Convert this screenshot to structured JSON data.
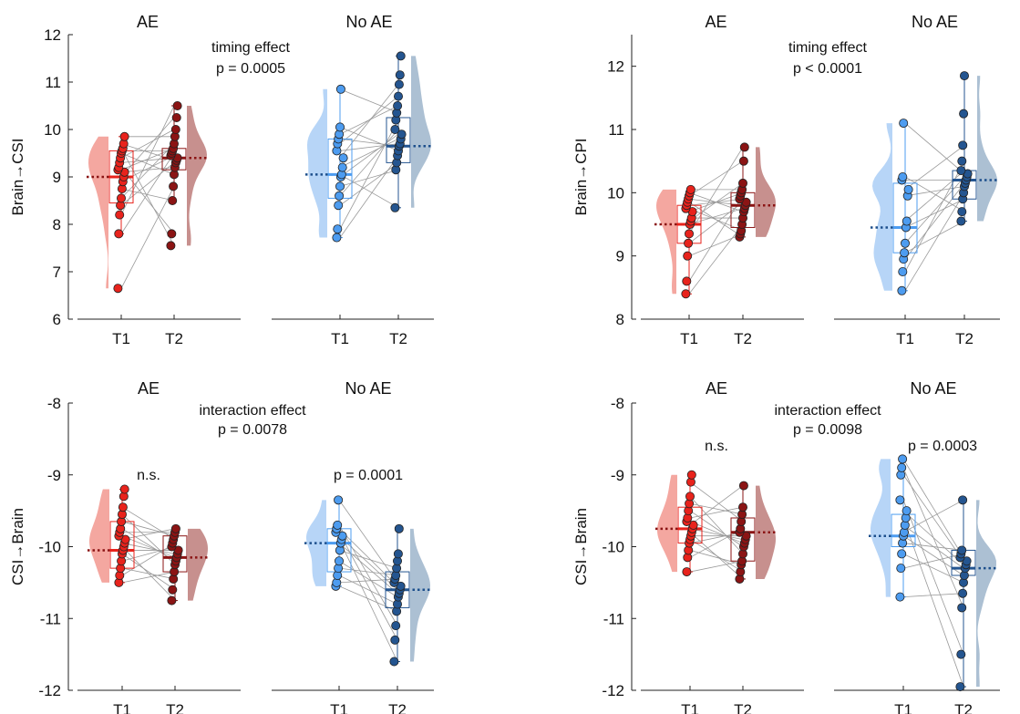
{
  "colors": {
    "ae_t1": "#e8231c",
    "ae_t2": "#8b1414",
    "ae_t1_violin": "#f3a29b",
    "ae_t2_violin": "#c48a88",
    "noae_t1": "#4d9cf0",
    "noae_t2": "#245590",
    "noae_t1_violin": "#b3d3f7",
    "noae_t2_violin": "#a8bdd1",
    "line": "#999999"
  },
  "chart_data": [
    {
      "type": "scatter",
      "ylabel": "Brain→CSI",
      "ylim": [
        6,
        12
      ],
      "yticks": [
        6,
        7,
        8,
        9,
        10,
        11,
        12
      ],
      "effect": {
        "label": "timing effect",
        "p": "p = 0.0005"
      },
      "groups": [
        {
          "title": "AE",
          "xticks": [
            "T1",
            "T2"
          ],
          "stat": "",
          "t1": [
            6.65,
            7.8,
            8.2,
            8.4,
            8.55,
            8.75,
            8.9,
            9.0,
            9.1,
            9.15,
            9.2,
            9.3,
            9.4,
            9.5,
            9.55,
            9.6,
            9.7,
            9.85
          ],
          "t2": [
            7.55,
            7.8,
            8.5,
            8.8,
            9.05,
            9.2,
            9.3,
            9.35,
            9.4,
            9.45,
            9.5,
            9.55,
            9.6,
            9.7,
            9.85,
            10.0,
            10.25,
            10.5
          ],
          "t1_box": {
            "q1": 8.45,
            "median": 9.0,
            "q3": 9.55,
            "min": 7.8,
            "max": 9.85
          },
          "t2_box": {
            "q1": 9.15,
            "median": 9.4,
            "q3": 9.6,
            "min": 8.5,
            "max": 10.5
          }
        },
        {
          "title": "No AE",
          "xticks": [
            "T1",
            "T2"
          ],
          "stat": "",
          "t1": [
            7.72,
            7.9,
            8.4,
            8.6,
            8.8,
            9.0,
            9.05,
            9.2,
            9.4,
            9.55,
            9.7,
            9.8,
            9.9,
            10.05,
            10.85
          ],
          "t2": [
            8.35,
            9.15,
            9.3,
            9.45,
            9.55,
            9.65,
            9.7,
            9.8,
            9.9,
            10.0,
            10.2,
            10.35,
            10.5,
            10.7,
            10.95,
            11.15,
            11.55
          ],
          "t1_box": {
            "q1": 8.55,
            "median": 9.05,
            "q3": 9.8,
            "min": 7.72,
            "max": 10.85
          },
          "t2_box": {
            "q1": 9.3,
            "median": 9.65,
            "q3": 10.25,
            "min": 8.35,
            "max": 11.55
          }
        }
      ]
    },
    {
      "type": "scatter",
      "ylabel": "Brain→CPI",
      "ylim": [
        8,
        12.5
      ],
      "yticks": [
        8,
        9,
        10,
        11,
        12
      ],
      "effect": {
        "label": "timing effect",
        "p": "p < 0.0001"
      },
      "groups": [
        {
          "title": "AE",
          "xticks": [
            "T1",
            "T2"
          ],
          "stat": "",
          "t1": [
            8.4,
            8.6,
            9.0,
            9.2,
            9.35,
            9.5,
            9.55,
            9.6,
            9.7,
            9.75,
            9.8,
            9.85,
            9.9,
            9.95,
            10.0,
            10.05
          ],
          "t2": [
            9.3,
            9.35,
            9.4,
            9.5,
            9.6,
            9.7,
            9.75,
            9.8,
            9.85,
            9.9,
            9.95,
            10.0,
            10.05,
            10.15,
            10.5,
            10.72
          ],
          "t1_box": {
            "q1": 9.2,
            "median": 9.5,
            "q3": 9.8,
            "min": 8.4,
            "max": 10.05
          },
          "t2_box": {
            "q1": 9.45,
            "median": 9.8,
            "q3": 10.0,
            "min": 9.3,
            "max": 10.72
          }
        },
        {
          "title": "No AE",
          "xticks": [
            "T1",
            "T2"
          ],
          "stat": "",
          "t1": [
            8.45,
            8.75,
            8.95,
            9.05,
            9.2,
            9.45,
            9.55,
            9.95,
            10.05,
            10.2,
            10.25,
            11.1
          ],
          "t2": [
            9.55,
            9.7,
            9.9,
            10.0,
            10.1,
            10.15,
            10.2,
            10.25,
            10.3,
            10.35,
            10.5,
            10.75,
            11.25,
            11.85
          ],
          "t1_box": {
            "q1": 9.05,
            "median": 9.45,
            "q3": 10.15,
            "min": 8.45,
            "max": 11.1
          },
          "t2_box": {
            "q1": 9.9,
            "median": 10.2,
            "q3": 10.35,
            "min": 9.55,
            "max": 11.85
          }
        }
      ]
    },
    {
      "type": "scatter",
      "ylabel": "CSI→Brain",
      "ylim": [
        -12,
        -8
      ],
      "yticks": [
        -12,
        -11,
        -10,
        -9,
        -8
      ],
      "effect": {
        "label": "interaction effect",
        "p": "p = 0.0078"
      },
      "groups": [
        {
          "title": "AE",
          "xticks": [
            "T1",
            "T2"
          ],
          "stat": "n.s.",
          "t1": [
            -10.5,
            -10.4,
            -10.3,
            -10.2,
            -10.1,
            -10.05,
            -10.0,
            -9.95,
            -9.9,
            -9.85,
            -9.8,
            -9.75,
            -9.65,
            -9.55,
            -9.45,
            -9.3,
            -9.2
          ],
          "t2": [
            -10.75,
            -10.6,
            -10.45,
            -10.35,
            -10.25,
            -10.2,
            -10.15,
            -10.1,
            -10.05,
            -10.0,
            -9.95,
            -9.9,
            -9.85,
            -9.8,
            -9.75
          ],
          "t1_box": {
            "q1": -10.3,
            "median": -10.05,
            "q3": -9.65,
            "min": -10.5,
            "max": -9.2
          },
          "t2_box": {
            "q1": -10.35,
            "median": -10.15,
            "q3": -9.85,
            "min": -10.75,
            "max": -9.75
          }
        },
        {
          "title": "No AE",
          "xticks": [
            "T1",
            "T2"
          ],
          "stat": "p = 0.0001",
          "t1": [
            -10.55,
            -10.5,
            -10.4,
            -10.3,
            -10.2,
            -10.05,
            -9.95,
            -9.9,
            -9.85,
            -9.8,
            -9.75,
            -9.7,
            -9.35
          ],
          "t2": [
            -11.6,
            -11.3,
            -11.1,
            -10.9,
            -10.8,
            -10.7,
            -10.65,
            -10.6,
            -10.55,
            -10.5,
            -10.45,
            -10.4,
            -10.3,
            -10.2,
            -10.1,
            -9.75
          ],
          "t1_box": {
            "q1": -10.35,
            "median": -9.95,
            "q3": -9.75,
            "min": -10.55,
            "max": -9.35
          },
          "t2_box": {
            "q1": -10.85,
            "median": -10.6,
            "q3": -10.35,
            "min": -11.6,
            "max": -9.75
          }
        }
      ]
    },
    {
      "type": "scatter",
      "ylabel": "CSI→Brain",
      "ylim": [
        -12,
        -8
      ],
      "yticks": [
        -12,
        -11,
        -10,
        -9,
        -8
      ],
      "effect": {
        "label": "interaction effect",
        "p": "p = 0.0098"
      },
      "groups": [
        {
          "title": "AE",
          "xticks": [
            "T1",
            "T2"
          ],
          "stat": "n.s.",
          "t1": [
            -10.35,
            -10.15,
            -10.05,
            -9.95,
            -9.9,
            -9.85,
            -9.8,
            -9.75,
            -9.7,
            -9.65,
            -9.6,
            -9.5,
            -9.4,
            -9.3,
            -9.1,
            -9.0
          ],
          "t2": [
            -10.45,
            -10.35,
            -10.25,
            -10.2,
            -10.1,
            -10.0,
            -9.95,
            -9.9,
            -9.85,
            -9.8,
            -9.75,
            -9.65,
            -9.55,
            -9.45,
            -9.15
          ],
          "t1_box": {
            "q1": -9.95,
            "median": -9.75,
            "q3": -9.45,
            "min": -10.35,
            "max": -9.0
          },
          "t2_box": {
            "q1": -10.2,
            "median": -9.8,
            "q3": -9.6,
            "min": -10.45,
            "max": -9.15
          }
        },
        {
          "title": "No AE",
          "xticks": [
            "T1",
            "T2"
          ],
          "stat": "p = 0.0003",
          "t1": [
            -10.7,
            -10.3,
            -10.1,
            -9.95,
            -9.85,
            -9.8,
            -9.7,
            -9.6,
            -9.5,
            -9.35,
            -9.0,
            -8.9,
            -8.78
          ],
          "t2": [
            -11.95,
            -11.5,
            -10.85,
            -10.65,
            -10.5,
            -10.4,
            -10.3,
            -10.25,
            -10.2,
            -10.15,
            -10.1,
            -10.05,
            -9.35
          ],
          "t1_box": {
            "q1": -10.0,
            "median": -9.85,
            "q3": -9.55,
            "min": -10.7,
            "max": -8.78
          },
          "t2_box": {
            "q1": -10.4,
            "median": -10.3,
            "q3": -10.05,
            "min": -11.95,
            "max": -9.35
          }
        }
      ]
    }
  ]
}
